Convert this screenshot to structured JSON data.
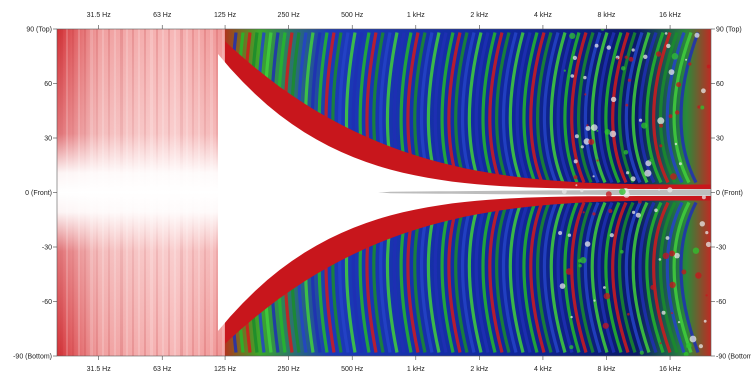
{
  "chart_data": {
    "type": "heatmap",
    "title": "",
    "xlabel": "",
    "ylabel": "",
    "x_scale": "log",
    "x_unit": "Hz",
    "x_ticks": [
      {
        "value": 31.5,
        "label": "31.5 Hz"
      },
      {
        "value": 63,
        "label": "63 Hz"
      },
      {
        "value": 125,
        "label": "125 Hz"
      },
      {
        "value": 250,
        "label": "250 Hz"
      },
      {
        "value": 500,
        "label": "500 Hz"
      },
      {
        "value": 1000,
        "label": "1 kHz"
      },
      {
        "value": 2000,
        "label": "2 kHz"
      },
      {
        "value": 4000,
        "label": "4 kHz"
      },
      {
        "value": 8000,
        "label": "8 kHz"
      },
      {
        "value": 16000,
        "label": "16 kHz"
      }
    ],
    "xlim": [
      20,
      25000
    ],
    "y_ticks": [
      {
        "value": 90,
        "label": "90 (Top)"
      },
      {
        "value": 60,
        "label": "60"
      },
      {
        "value": 30,
        "label": "30"
      },
      {
        "value": 0,
        "label": "0 (Front)"
      },
      {
        "value": -30,
        "label": "-30"
      },
      {
        "value": -60,
        "label": "-60"
      },
      {
        "value": -90,
        "label": "-90 (Bottom)"
      }
    ],
    "ylim": [
      -90,
      90
    ],
    "x_ticks_top": true,
    "y_ticks_right": true,
    "grid": false,
    "colormap": [
      "#ffffff",
      "#f4a6a6",
      "#c8141c",
      "#2fc32f",
      "#1c2fb0",
      "#000a3c"
    ]
  }
}
